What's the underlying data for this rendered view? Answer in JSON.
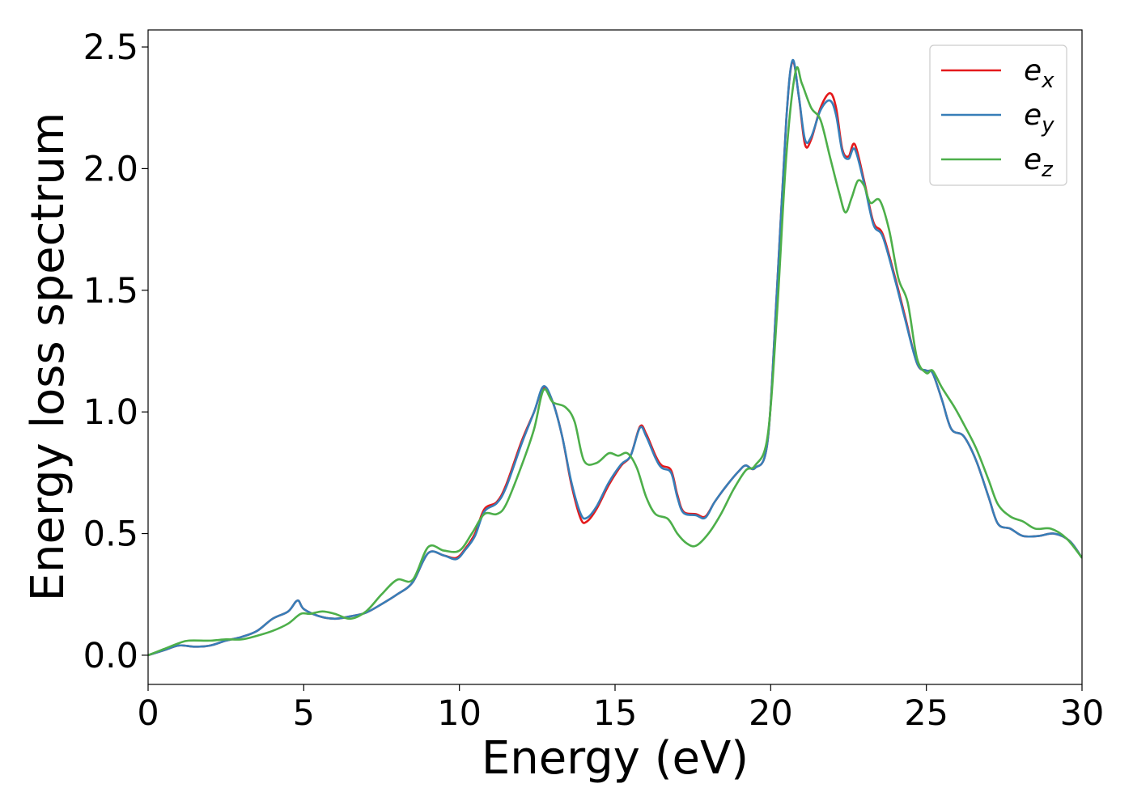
{
  "chart_data": {
    "type": "line",
    "title": "",
    "xlabel": "Energy (eV)",
    "ylabel": "Energy loss spectrum",
    "xlim": [
      0,
      30
    ],
    "ylim": [
      -0.12,
      2.57
    ],
    "xticks": [
      0,
      5,
      10,
      15,
      20,
      25,
      30
    ],
    "xtick_labels": [
      "0",
      "5",
      "10",
      "15",
      "20",
      "25",
      "30"
    ],
    "yticks": [
      0.0,
      0.5,
      1.0,
      1.5,
      2.0,
      2.5
    ],
    "ytick_labels": [
      "0.0",
      "0.5",
      "1.0",
      "1.5",
      "2.0",
      "2.5"
    ],
    "grid": false,
    "legend_position": "top-right",
    "series": [
      {
        "name": "e_x",
        "label_base": "e",
        "label_sub": "x",
        "color": "#e41a1c",
        "points": [
          [
            0,
            0
          ],
          [
            0.5,
            0.02
          ],
          [
            1.0,
            0.04
          ],
          [
            1.5,
            0.035
          ],
          [
            2.0,
            0.04
          ],
          [
            2.5,
            0.06
          ],
          [
            3.0,
            0.075
          ],
          [
            3.5,
            0.1
          ],
          [
            4.0,
            0.15
          ],
          [
            4.5,
            0.18
          ],
          [
            4.8,
            0.225
          ],
          [
            5.0,
            0.19
          ],
          [
            5.5,
            0.16
          ],
          [
            6.0,
            0.15
          ],
          [
            6.5,
            0.16
          ],
          [
            7.0,
            0.175
          ],
          [
            7.5,
            0.21
          ],
          [
            8.0,
            0.25
          ],
          [
            8.5,
            0.3
          ],
          [
            9.0,
            0.42
          ],
          [
            9.5,
            0.41
          ],
          [
            9.9,
            0.4
          ],
          [
            10.2,
            0.44
          ],
          [
            10.5,
            0.5
          ],
          [
            10.8,
            0.6
          ],
          [
            11.2,
            0.63
          ],
          [
            11.5,
            0.7
          ],
          [
            12.0,
            0.88
          ],
          [
            12.4,
            1.0
          ],
          [
            12.7,
            1.1
          ],
          [
            13.0,
            1.04
          ],
          [
            13.3,
            0.9
          ],
          [
            13.6,
            0.7
          ],
          [
            13.9,
            0.56
          ],
          [
            14.1,
            0.55
          ],
          [
            14.4,
            0.6
          ],
          [
            14.8,
            0.7
          ],
          [
            15.2,
            0.78
          ],
          [
            15.5,
            0.82
          ],
          [
            15.8,
            0.94
          ],
          [
            16.0,
            0.91
          ],
          [
            16.3,
            0.82
          ],
          [
            16.5,
            0.78
          ],
          [
            16.8,
            0.76
          ],
          [
            17.0,
            0.66
          ],
          [
            17.2,
            0.59
          ],
          [
            17.6,
            0.58
          ],
          [
            17.9,
            0.57
          ],
          [
            18.2,
            0.63
          ],
          [
            18.6,
            0.7
          ],
          [
            19.0,
            0.76
          ],
          [
            19.2,
            0.78
          ],
          [
            19.5,
            0.77
          ],
          [
            19.9,
            0.88
          ],
          [
            20.2,
            1.5
          ],
          [
            20.5,
            2.2
          ],
          [
            20.7,
            2.44
          ],
          [
            20.9,
            2.3
          ],
          [
            21.1,
            2.1
          ],
          [
            21.3,
            2.12
          ],
          [
            21.6,
            2.25
          ],
          [
            21.9,
            2.31
          ],
          [
            22.1,
            2.25
          ],
          [
            22.3,
            2.08
          ],
          [
            22.5,
            2.05
          ],
          [
            22.7,
            2.1
          ],
          [
            23.0,
            1.95
          ],
          [
            23.3,
            1.78
          ],
          [
            23.6,
            1.73
          ],
          [
            24.0,
            1.55
          ],
          [
            24.3,
            1.4
          ],
          [
            24.7,
            1.2
          ],
          [
            25.0,
            1.17
          ],
          [
            25.2,
            1.16
          ],
          [
            25.5,
            1.05
          ],
          [
            25.8,
            0.93
          ],
          [
            26.2,
            0.9
          ],
          [
            26.6,
            0.8
          ],
          [
            27.0,
            0.65
          ],
          [
            27.3,
            0.54
          ],
          [
            27.7,
            0.52
          ],
          [
            28.1,
            0.49
          ],
          [
            28.6,
            0.49
          ],
          [
            29.1,
            0.5
          ],
          [
            29.6,
            0.47
          ],
          [
            30.0,
            0.4
          ]
        ]
      },
      {
        "name": "e_y",
        "label_base": "e",
        "label_sub": "y",
        "color": "#377eb8",
        "points": [
          [
            0,
            0
          ],
          [
            0.5,
            0.02
          ],
          [
            1.0,
            0.04
          ],
          [
            1.5,
            0.035
          ],
          [
            2.0,
            0.04
          ],
          [
            2.5,
            0.06
          ],
          [
            3.0,
            0.075
          ],
          [
            3.5,
            0.1
          ],
          [
            4.0,
            0.15
          ],
          [
            4.5,
            0.18
          ],
          [
            4.8,
            0.225
          ],
          [
            5.0,
            0.19
          ],
          [
            5.5,
            0.16
          ],
          [
            6.0,
            0.15
          ],
          [
            6.5,
            0.16
          ],
          [
            7.0,
            0.175
          ],
          [
            7.5,
            0.21
          ],
          [
            8.0,
            0.25
          ],
          [
            8.5,
            0.3
          ],
          [
            9.0,
            0.42
          ],
          [
            9.5,
            0.41
          ],
          [
            9.9,
            0.395
          ],
          [
            10.2,
            0.435
          ],
          [
            10.5,
            0.49
          ],
          [
            10.8,
            0.59
          ],
          [
            11.2,
            0.625
          ],
          [
            11.5,
            0.69
          ],
          [
            12.0,
            0.87
          ],
          [
            12.4,
            1.0
          ],
          [
            12.7,
            1.105
          ],
          [
            13.0,
            1.04
          ],
          [
            13.3,
            0.9
          ],
          [
            13.6,
            0.71
          ],
          [
            13.9,
            0.58
          ],
          [
            14.1,
            0.565
          ],
          [
            14.4,
            0.61
          ],
          [
            14.8,
            0.71
          ],
          [
            15.2,
            0.785
          ],
          [
            15.5,
            0.82
          ],
          [
            15.8,
            0.935
          ],
          [
            16.0,
            0.9
          ],
          [
            16.3,
            0.81
          ],
          [
            16.5,
            0.77
          ],
          [
            16.8,
            0.75
          ],
          [
            17.0,
            0.65
          ],
          [
            17.2,
            0.585
          ],
          [
            17.6,
            0.575
          ],
          [
            17.9,
            0.565
          ],
          [
            18.2,
            0.63
          ],
          [
            18.6,
            0.7
          ],
          [
            19.0,
            0.76
          ],
          [
            19.2,
            0.78
          ],
          [
            19.5,
            0.77
          ],
          [
            19.9,
            0.88
          ],
          [
            20.2,
            1.5
          ],
          [
            20.5,
            2.2
          ],
          [
            20.7,
            2.445
          ],
          [
            20.9,
            2.3
          ],
          [
            21.1,
            2.12
          ],
          [
            21.3,
            2.13
          ],
          [
            21.6,
            2.24
          ],
          [
            21.9,
            2.28
          ],
          [
            22.1,
            2.22
          ],
          [
            22.3,
            2.07
          ],
          [
            22.5,
            2.04
          ],
          [
            22.7,
            2.08
          ],
          [
            23.0,
            1.94
          ],
          [
            23.3,
            1.77
          ],
          [
            23.6,
            1.72
          ],
          [
            24.0,
            1.54
          ],
          [
            24.3,
            1.39
          ],
          [
            24.7,
            1.2
          ],
          [
            25.0,
            1.17
          ],
          [
            25.2,
            1.16
          ],
          [
            25.5,
            1.05
          ],
          [
            25.8,
            0.93
          ],
          [
            26.2,
            0.9
          ],
          [
            26.6,
            0.8
          ],
          [
            27.0,
            0.65
          ],
          [
            27.3,
            0.54
          ],
          [
            27.7,
            0.52
          ],
          [
            28.1,
            0.49
          ],
          [
            28.6,
            0.49
          ],
          [
            29.1,
            0.5
          ],
          [
            29.6,
            0.47
          ],
          [
            30.0,
            0.4
          ]
        ]
      },
      {
        "name": "e_z",
        "label_base": "e",
        "label_sub": "z",
        "color": "#4daf4a",
        "points": [
          [
            0,
            0
          ],
          [
            0.5,
            0.025
          ],
          [
            1.0,
            0.05
          ],
          [
            1.3,
            0.06
          ],
          [
            2.0,
            0.06
          ],
          [
            2.5,
            0.065
          ],
          [
            3.0,
            0.065
          ],
          [
            3.5,
            0.08
          ],
          [
            4.0,
            0.1
          ],
          [
            4.5,
            0.13
          ],
          [
            4.9,
            0.17
          ],
          [
            5.2,
            0.17
          ],
          [
            5.6,
            0.18
          ],
          [
            6.0,
            0.17
          ],
          [
            6.5,
            0.15
          ],
          [
            7.0,
            0.18
          ],
          [
            7.5,
            0.25
          ],
          [
            8.0,
            0.31
          ],
          [
            8.5,
            0.31
          ],
          [
            9.0,
            0.445
          ],
          [
            9.5,
            0.43
          ],
          [
            10.0,
            0.43
          ],
          [
            10.4,
            0.5
          ],
          [
            10.8,
            0.58
          ],
          [
            11.2,
            0.58
          ],
          [
            11.5,
            0.62
          ],
          [
            12.0,
            0.78
          ],
          [
            12.4,
            0.93
          ],
          [
            12.7,
            1.09
          ],
          [
            13.0,
            1.04
          ],
          [
            13.4,
            1.02
          ],
          [
            13.7,
            0.96
          ],
          [
            14.0,
            0.8
          ],
          [
            14.4,
            0.79
          ],
          [
            14.8,
            0.83
          ],
          [
            15.1,
            0.82
          ],
          [
            15.4,
            0.83
          ],
          [
            15.7,
            0.77
          ],
          [
            16.0,
            0.65
          ],
          [
            16.3,
            0.58
          ],
          [
            16.7,
            0.56
          ],
          [
            17.0,
            0.5
          ],
          [
            17.3,
            0.46
          ],
          [
            17.6,
            0.45
          ],
          [
            18.0,
            0.5
          ],
          [
            18.4,
            0.58
          ],
          [
            18.8,
            0.68
          ],
          [
            19.2,
            0.76
          ],
          [
            19.5,
            0.78
          ],
          [
            19.9,
            0.9
          ],
          [
            20.2,
            1.4
          ],
          [
            20.5,
            2.05
          ],
          [
            20.8,
            2.4
          ],
          [
            21.0,
            2.35
          ],
          [
            21.3,
            2.25
          ],
          [
            21.6,
            2.2
          ],
          [
            21.9,
            2.05
          ],
          [
            22.2,
            1.9
          ],
          [
            22.4,
            1.82
          ],
          [
            22.6,
            1.88
          ],
          [
            22.8,
            1.95
          ],
          [
            23.0,
            1.93
          ],
          [
            23.2,
            1.86
          ],
          [
            23.5,
            1.87
          ],
          [
            23.8,
            1.75
          ],
          [
            24.1,
            1.55
          ],
          [
            24.4,
            1.45
          ],
          [
            24.7,
            1.22
          ],
          [
            25.0,
            1.16
          ],
          [
            25.2,
            1.17
          ],
          [
            25.5,
            1.1
          ],
          [
            25.9,
            1.02
          ],
          [
            26.2,
            0.95
          ],
          [
            26.6,
            0.85
          ],
          [
            27.0,
            0.72
          ],
          [
            27.3,
            0.62
          ],
          [
            27.7,
            0.57
          ],
          [
            28.1,
            0.55
          ],
          [
            28.5,
            0.52
          ],
          [
            29.0,
            0.52
          ],
          [
            29.5,
            0.48
          ],
          [
            30.0,
            0.4
          ]
        ]
      }
    ]
  }
}
